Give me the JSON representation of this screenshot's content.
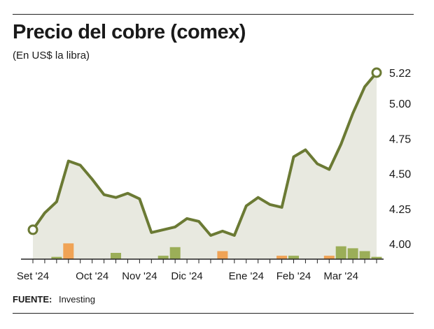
{
  "header": {
    "title": "Precio del cobre (comex)",
    "subtitle": "(En US$ la libra)"
  },
  "footer": {
    "source_label": "FUENTE:",
    "source_value": "Investing"
  },
  "colors": {
    "line": "#6b7a34",
    "area": "#e8e9e0",
    "bar_green": "#9bae58",
    "bar_orange": "#f0a355",
    "text": "#1a1a1a"
  },
  "chart_data": {
    "type": "line",
    "title": "Precio del cobre (comex)",
    "subtitle": "(En US$ la libra)",
    "ylim": [
      3.92,
      5.32
    ],
    "yticks": [
      "4.00",
      "4.25",
      "4.50",
      "4.75",
      "5.00",
      "5.22"
    ],
    "ytick_values": [
      4.0,
      4.25,
      4.5,
      4.75,
      5.0,
      5.22
    ],
    "x_labels": [
      "Set '24",
      "Oct '24",
      "Nov '24",
      "Dic '24",
      "Ene '24",
      "Feb '24",
      "Mar '24"
    ],
    "x_label_index": [
      0,
      5,
      9,
      13,
      18,
      22,
      26
    ],
    "n_points": 30,
    "series": [
      {
        "values": [
          4.1,
          4.22,
          4.3,
          4.59,
          4.56,
          4.46,
          4.35,
          4.33,
          4.36,
          4.32,
          4.08,
          4.1,
          4.12,
          4.18,
          4.16,
          4.06,
          4.09,
          4.06,
          4.27,
          4.33,
          4.28,
          4.26,
          4.62,
          4.67,
          4.57,
          4.53,
          4.71,
          4.93,
          5.12,
          5.22
        ]
      }
    ],
    "bars_label": "",
    "bars": [
      {
        "index": 2,
        "value": 0.008,
        "color": "green"
      },
      {
        "index": 3,
        "value": 0.055,
        "color": "orange"
      },
      {
        "index": 7,
        "value": 0.022,
        "color": "green"
      },
      {
        "index": 11,
        "value": 0.012,
        "color": "green"
      },
      {
        "index": 12,
        "value": 0.042,
        "color": "green"
      },
      {
        "index": 16,
        "value": 0.028,
        "color": "orange"
      },
      {
        "index": 21,
        "value": 0.012,
        "color": "orange"
      },
      {
        "index": 22,
        "value": 0.012,
        "color": "green"
      },
      {
        "index": 25,
        "value": 0.012,
        "color": "orange"
      },
      {
        "index": 26,
        "value": 0.045,
        "color": "green"
      },
      {
        "index": 27,
        "value": 0.038,
        "color": "green"
      },
      {
        "index": 28,
        "value": 0.028,
        "color": "green"
      },
      {
        "index": 29,
        "value": 0.008,
        "color": "green"
      }
    ],
    "grid": false,
    "markers": "first-and-last"
  }
}
